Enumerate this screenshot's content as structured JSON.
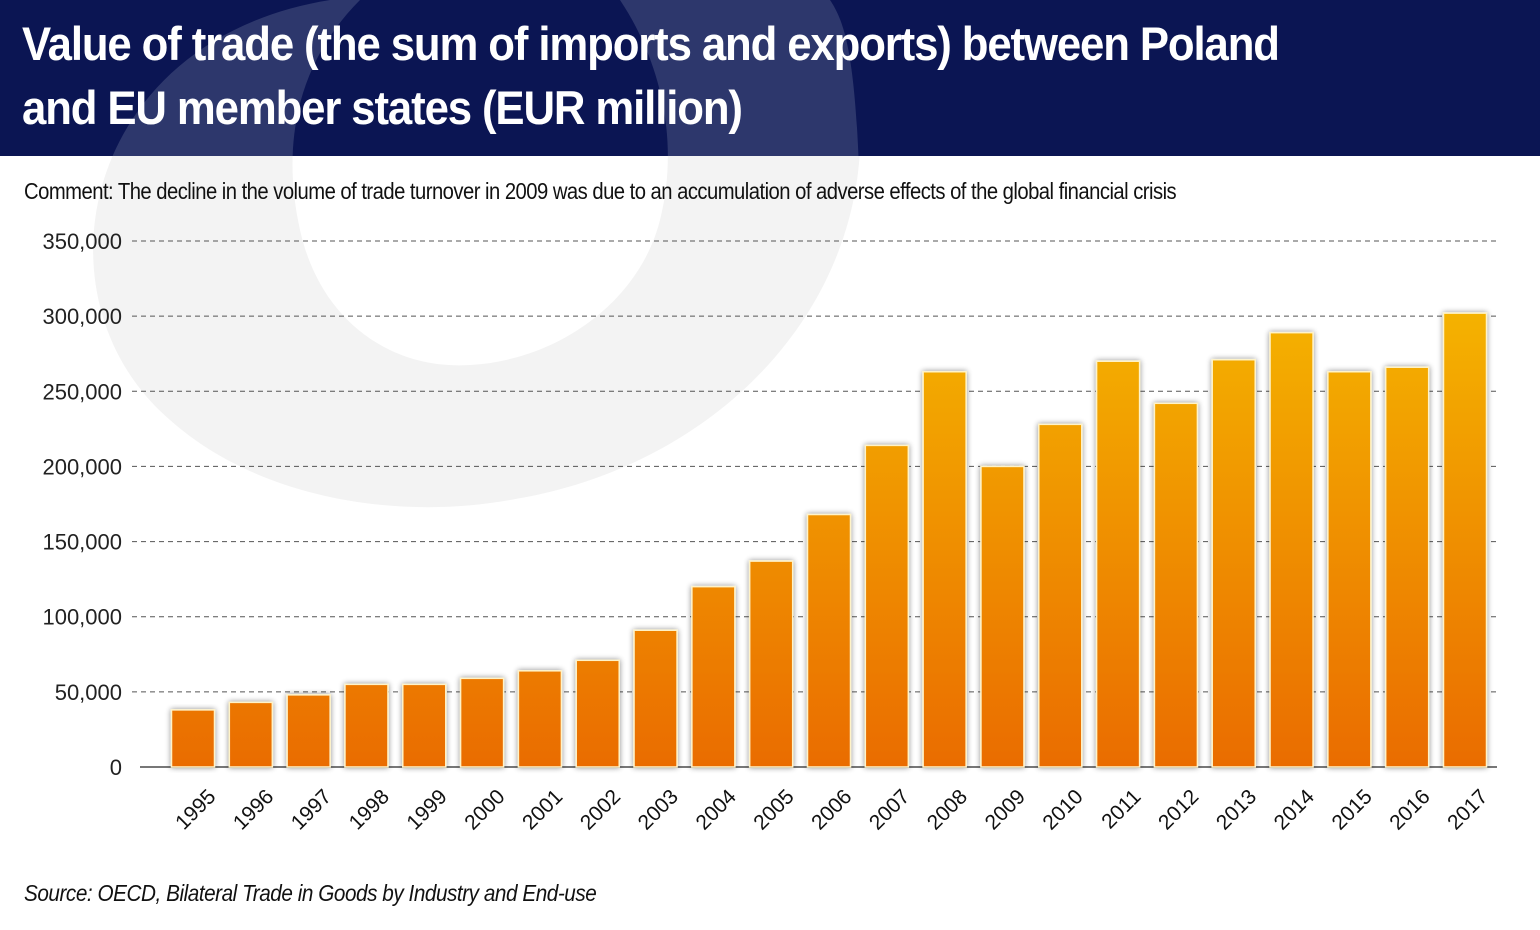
{
  "header": {
    "title_line1": "Value of trade (the sum of imports and exports) between Poland",
    "title_line2": "and EU member states (EUR million)"
  },
  "comment": "Comment: The decline in the volume of trade turnover in 2009 was due to an accumulation of adverse effects of the global financial crisis",
  "source": "Source: OECD, Bilateral Trade in Goods by Industry and End-use",
  "colors": {
    "header_bg": "#0b1553",
    "bar_top": "#f6bd00",
    "bar_bottom": "#ea6c06",
    "watermark": "#f3f3f3"
  },
  "chart_data": {
    "type": "bar",
    "title": "Value of trade (the sum of imports and exports) between Poland and EU member states (EUR million)",
    "xlabel": "",
    "ylabel": "",
    "ylim": [
      0,
      350000
    ],
    "yticks": [
      0,
      50000,
      100000,
      150000,
      200000,
      250000,
      300000,
      350000
    ],
    "ytick_labels": [
      "0",
      "50,000",
      "100,000",
      "150,000",
      "200,000",
      "250,000",
      "300,000",
      "350,000"
    ],
    "grid": true,
    "legend": "none",
    "categories": [
      "1995",
      "1996",
      "1997",
      "1998",
      "1999",
      "2000",
      "2001",
      "2002",
      "2003",
      "2004",
      "2005",
      "2006",
      "2007",
      "2008",
      "2009",
      "2010",
      "2011",
      "2012",
      "2013",
      "2014",
      "2015",
      "2016",
      "2017"
    ],
    "values": [
      38000,
      43000,
      48000,
      55000,
      55000,
      59000,
      64000,
      71000,
      91000,
      120000,
      137000,
      168000,
      214000,
      263000,
      200000,
      228000,
      270000,
      242000,
      271000,
      289000,
      263000,
      266000,
      302000
    ]
  }
}
